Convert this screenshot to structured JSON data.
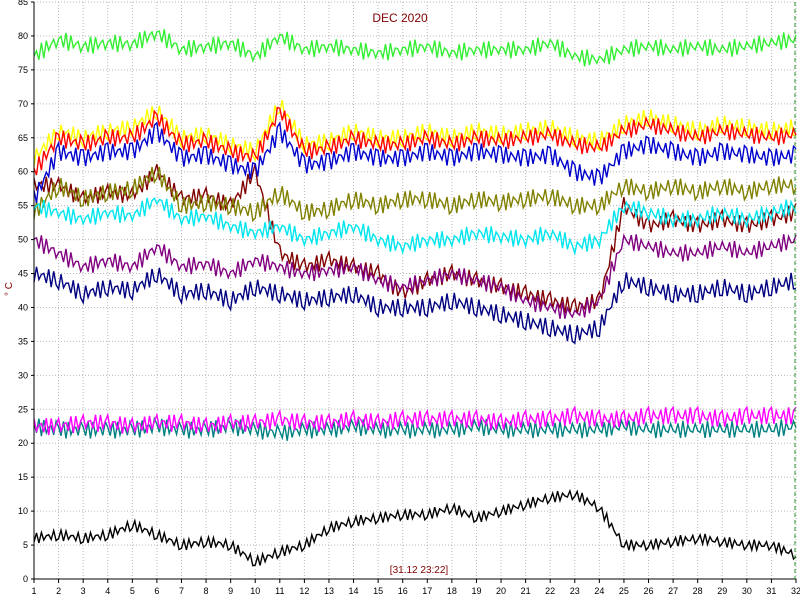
{
  "chart_data": {
    "type": "line",
    "title": "DEC 2020",
    "ylabel": "° C",
    "timestamp": "[31.12 23:22]",
    "xlim": [
      1,
      32
    ],
    "ylim": [
      0,
      85
    ],
    "x_ticks": [
      1,
      2,
      3,
      4,
      5,
      6,
      7,
      8,
      9,
      10,
      11,
      12,
      13,
      14,
      15,
      16,
      17,
      18,
      19,
      20,
      21,
      22,
      23,
      24,
      25,
      26,
      27,
      28,
      29,
      30,
      31,
      32
    ],
    "y_ticks": [
      0,
      5,
      10,
      15,
      20,
      25,
      30,
      35,
      40,
      45,
      50,
      55,
      60,
      65,
      70,
      75,
      80,
      85
    ],
    "grid": true,
    "colors": {
      "plot_bg": "#ffffff",
      "grid": "#b8b8b8",
      "axis": "#000000",
      "marker": "#2a9a2a"
    },
    "series": [
      {
        "color": "#33ee33",
        "values": [
          77.0,
          79.5,
          78.5,
          79.0,
          78.8,
          80.5,
          78.0,
          78.5,
          79.0,
          77.0,
          80.0,
          78.0,
          78.5,
          78.0,
          77.5,
          78.0,
          78.5,
          77.5,
          78.0,
          78.0,
          78.0,
          79.0,
          77.0,
          76.5,
          78.0,
          78.5,
          78.0,
          78.5,
          78.0,
          78.5,
          79.0,
          79.5
        ]
      },
      {
        "color": "#ffff00",
        "values": [
          62.0,
          66.0,
          65.0,
          66.0,
          66.5,
          69.0,
          65.0,
          65.5,
          64.0,
          63.0,
          70.0,
          64.0,
          64.5,
          66.0,
          65.0,
          65.0,
          66.0,
          65.0,
          66.0,
          65.5,
          66.0,
          66.5,
          65.0,
          64.5,
          67.0,
          68.0,
          67.0,
          66.0,
          67.0,
          66.5,
          66.0,
          66.5
        ]
      },
      {
        "color": "#ff0000",
        "values": [
          60.0,
          65.0,
          64.0,
          65.0,
          65.0,
          68.0,
          64.0,
          64.5,
          63.0,
          62.0,
          69.0,
          63.0,
          63.5,
          65.0,
          64.0,
          64.0,
          65.0,
          64.0,
          65.0,
          64.5,
          65.0,
          65.5,
          64.0,
          63.5,
          66.0,
          67.0,
          66.0,
          65.0,
          66.0,
          65.5,
          65.0,
          65.5
        ]
      },
      {
        "color": "#800000",
        "values": [
          58.0,
          58.0,
          56.0,
          57.0,
          56.5,
          60.0,
          56.0,
          56.5,
          55.0,
          60.0,
          48.0,
          46.0,
          47.0,
          46.0,
          45.0,
          42.0,
          44.0,
          45.0,
          44.0,
          43.0,
          42.0,
          41.0,
          40.0,
          41.0,
          55.0,
          52.0,
          53.0,
          52.0,
          53.0,
          52.0,
          53.0,
          54.0
        ]
      },
      {
        "color": "#808000",
        "values": [
          54.0,
          58.0,
          56.0,
          57.0,
          57.5,
          60.0,
          55.0,
          55.5,
          55.0,
          54.0,
          57.0,
          54.0,
          54.5,
          56.0,
          55.0,
          56.0,
          56.0,
          55.0,
          56.0,
          55.5,
          56.0,
          56.5,
          55.0,
          55.0,
          58.0,
          57.0,
          58.0,
          57.0,
          58.0,
          57.0,
          58.0,
          58.0
        ]
      },
      {
        "color": "#00e5ee",
        "values": [
          55.0,
          54.0,
          53.0,
          54.0,
          53.5,
          56.0,
          53.0,
          53.5,
          52.0,
          51.0,
          52.0,
          50.0,
          51.0,
          52.0,
          50.0,
          49.0,
          50.0,
          50.0,
          51.0,
          50.5,
          50.0,
          51.0,
          49.0,
          50.0,
          55.0,
          54.0,
          53.0,
          53.0,
          54.0,
          53.0,
          54.0,
          55.0
        ]
      },
      {
        "color": "#0000cc",
        "values": [
          56.0,
          63.0,
          62.0,
          63.0,
          63.0,
          66.0,
          62.0,
          62.5,
          61.0,
          60.0,
          66.0,
          61.0,
          61.5,
          63.0,
          62.0,
          62.0,
          63.0,
          62.0,
          63.0,
          62.5,
          62.0,
          62.5,
          60.0,
          59.0,
          63.0,
          64.0,
          63.0,
          62.0,
          63.0,
          62.5,
          62.0,
          62.5
        ]
      },
      {
        "color": "#800080",
        "values": [
          50.0,
          48.0,
          46.0,
          47.0,
          46.0,
          49.0,
          46.0,
          46.5,
          45.0,
          47.0,
          46.0,
          45.0,
          45.5,
          46.0,
          44.0,
          43.0,
          44.0,
          45.0,
          44.0,
          43.0,
          41.0,
          40.0,
          39.0,
          41.0,
          50.0,
          49.0,
          48.0,
          48.0,
          49.0,
          48.0,
          49.0,
          50.0
        ]
      },
      {
        "color": "#000080",
        "values": [
          45.0,
          44.0,
          42.0,
          43.0,
          42.5,
          45.0,
          42.0,
          42.5,
          41.0,
          43.0,
          42.0,
          41.0,
          41.5,
          42.0,
          40.0,
          40.0,
          40.0,
          41.0,
          40.0,
          39.0,
          38.0,
          37.0,
          36.0,
          37.0,
          44.0,
          43.0,
          42.0,
          42.0,
          43.0,
          42.0,
          43.0,
          44.0
        ]
      },
      {
        "color": "#008080",
        "values": [
          22.5,
          22.0,
          22.0,
          22.0,
          22.0,
          22.5,
          22.0,
          22.0,
          22.5,
          22.0,
          21.5,
          22.0,
          22.0,
          22.5,
          22.0,
          22.0,
          22.0,
          22.0,
          22.5,
          22.0,
          22.0,
          22.0,
          22.0,
          22.0,
          22.5,
          22.0,
          22.0,
          22.0,
          22.0,
          22.0,
          22.0,
          22.5
        ]
      },
      {
        "color": "#ff00ff",
        "values": [
          22.5,
          22.5,
          23.0,
          23.0,
          22.5,
          23.0,
          23.0,
          22.5,
          23.0,
          23.0,
          23.5,
          23.0,
          23.0,
          23.5,
          23.0,
          23.5,
          23.5,
          23.5,
          23.5,
          23.0,
          23.5,
          23.5,
          24.0,
          23.5,
          23.5,
          24.0,
          24.0,
          24.0,
          23.5,
          24.0,
          24.0,
          24.0
        ]
      },
      {
        "color": "#000000",
        "values": [
          6.0,
          6.5,
          6.0,
          6.5,
          8.0,
          6.5,
          5.0,
          5.5,
          5.0,
          2.5,
          4.0,
          5.0,
          7.5,
          8.5,
          9.0,
          9.5,
          9.5,
          10.5,
          9.0,
          10.0,
          11.0,
          12.0,
          12.5,
          10.5,
          5.0,
          5.0,
          5.5,
          6.0,
          5.5,
          5.0,
          5.0,
          3.5
        ]
      }
    ]
  }
}
